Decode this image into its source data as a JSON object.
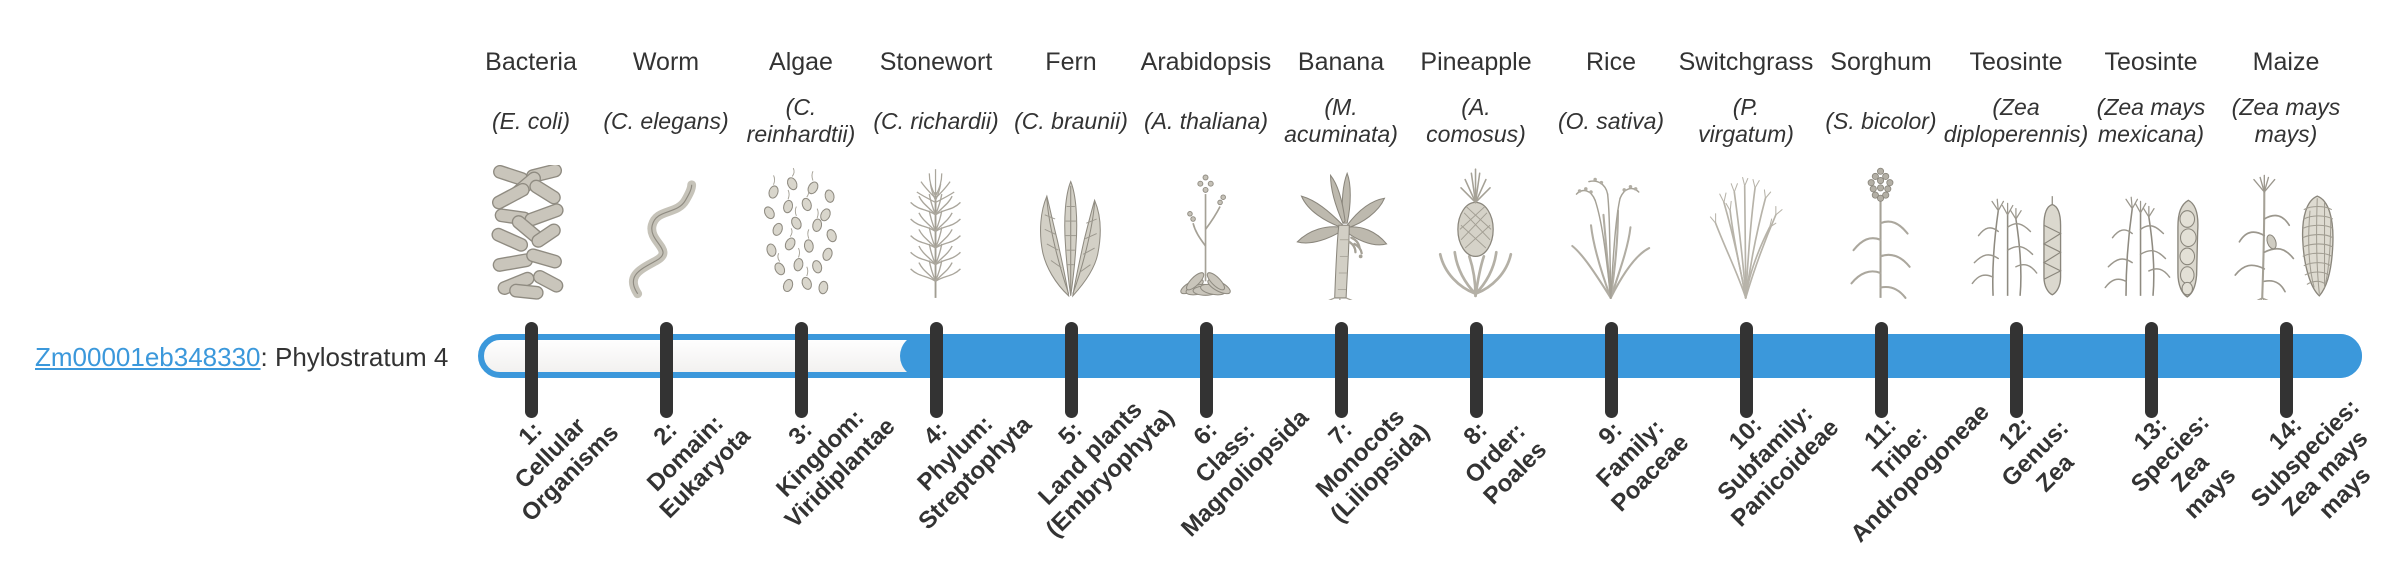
{
  "page": {
    "background": "#ffffff"
  },
  "colors": {
    "bar_blue": "#3b98db",
    "tick": "#333333",
    "text": "#333333",
    "link": "#3b98db",
    "icon_gray": "#c9c5bb"
  },
  "gene": {
    "id": "Zm00001eb348330",
    "label_suffix": ": Phylostratum 4",
    "phylostratum": 4
  },
  "organisms": [
    {
      "common": "Bacteria",
      "species_lines": [
        "(E. coli)"
      ],
      "icon": "bacteria-icon"
    },
    {
      "common": "Worm",
      "species_lines": [
        "(C. elegans)"
      ],
      "icon": "worm-icon"
    },
    {
      "common": "Algae",
      "species_lines": [
        "(C.",
        "reinhardtii)"
      ],
      "icon": "algae-icon"
    },
    {
      "common": "Stonewort",
      "species_lines": [
        "(C. richardii)"
      ],
      "icon": "stonewort-icon"
    },
    {
      "common": "Fern",
      "species_lines": [
        "(C. braunii)"
      ],
      "icon": "fern-icon"
    },
    {
      "common": "Arabidopsis",
      "species_lines": [
        "(A. thaliana)"
      ],
      "icon": "arabidopsis-icon"
    },
    {
      "common": "Banana",
      "species_lines": [
        "(M.",
        "acuminata)"
      ],
      "icon": "banana-icon"
    },
    {
      "common": "Pineapple",
      "species_lines": [
        "(A.",
        "comosus)"
      ],
      "icon": "pineapple-icon"
    },
    {
      "common": "Rice",
      "species_lines": [
        "(O. sativa)"
      ],
      "icon": "rice-icon"
    },
    {
      "common": "Switchgrass",
      "species_lines": [
        "(P.",
        "virgatum)"
      ],
      "icon": "switchgrass-icon"
    },
    {
      "common": "Sorghum",
      "species_lines": [
        "(S. bicolor)"
      ],
      "icon": "sorghum-icon"
    },
    {
      "common": "Teosinte",
      "species_lines": [
        "(Zea",
        "diploperennis)"
      ],
      "icon": "teosinte-icon"
    },
    {
      "common": "Teosinte",
      "species_lines": [
        "(Zea mays",
        "mexicana)"
      ],
      "icon": "teosinte-mexicana-icon"
    },
    {
      "common": "Maize",
      "species_lines": [
        "(Zea mays",
        "mays)"
      ],
      "icon": "maize-icon"
    }
  ],
  "strata": [
    {
      "lines": [
        "1:",
        "Cellular",
        "Organisms"
      ]
    },
    {
      "lines": [
        "2:",
        "Domain:",
        "Eukaryota"
      ]
    },
    {
      "lines": [
        "3:",
        "Kingdom:",
        "Viridiplantae"
      ]
    },
    {
      "lines": [
        "4:",
        "Phylum:",
        "Streptophyta"
      ]
    },
    {
      "lines": [
        "5:",
        "Land plants",
        "(Embryophyta)"
      ]
    },
    {
      "lines": [
        "6:",
        "Class:",
        "Magnoliopsida"
      ]
    },
    {
      "lines": [
        "7:",
        "Monocots",
        "(Liliopsida)"
      ]
    },
    {
      "lines": [
        "8:",
        "Order:",
        "Poales"
      ]
    },
    {
      "lines": [
        "9:",
        "Family:",
        "Poaceae"
      ]
    },
    {
      "lines": [
        "10:",
        "Subfamily:",
        "Panicoideae"
      ]
    },
    {
      "lines": [
        "11:",
        "Tribe:",
        "Andropogoneae"
      ]
    },
    {
      "lines": [
        "12:",
        "Genus:",
        "Zea"
      ]
    },
    {
      "lines": [
        "13:",
        "Species:",
        "Zea",
        "mays"
      ]
    },
    {
      "lines": [
        "14:",
        "Subspecies:",
        "Zea mays",
        "mays"
      ]
    }
  ],
  "chart_data": {
    "type": "table",
    "title": "Gene phylostratum assignment",
    "gene": "Zm00001eb348330",
    "assigned_phylostratum": 4,
    "assigned_phylostratum_name": "Phylum: Streptophyta",
    "categories": [
      "1: Cellular Organisms",
      "2: Domain: Eukaryota",
      "3: Kingdom: Viridiplantae",
      "4: Phylum: Streptophyta",
      "5: Land plants (Embryophyta)",
      "6: Class: Magnoliopsida",
      "7: Monocots (Liliopsida)",
      "8: Order: Poales",
      "9: Family: Poaceae",
      "10: Subfamily: Panicoideae",
      "11: Tribe: Andropogoneae",
      "12: Genus: Zea",
      "13: Species: Zea mays",
      "14: Subspecies: Zea mays mays"
    ],
    "representative_organisms": [
      "Bacteria (E. coli)",
      "Worm (C. elegans)",
      "Algae (C. reinhardtii)",
      "Stonewort (C. richardii)",
      "Fern (C. braunii)",
      "Arabidopsis (A. thaliana)",
      "Banana (M. acuminata)",
      "Pineapple (A. comosus)",
      "Rice (O. sativa)",
      "Switchgrass (P. virgatum)",
      "Sorghum (S. bicolor)",
      "Teosinte (Zea diploperennis)",
      "Teosinte (Zea mays mexicana)",
      "Maize (Zea mays mays)"
    ],
    "bar_filled_from_stratum": 4,
    "bar_filled_to_stratum": 14
  }
}
